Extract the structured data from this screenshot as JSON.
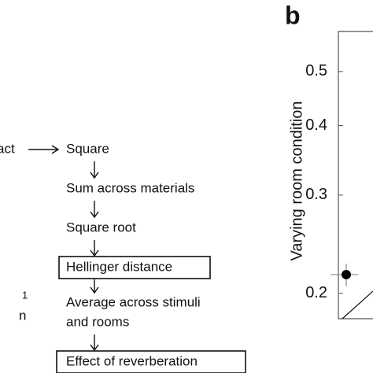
{
  "flowchart": {
    "input_fragment": "act",
    "steps": [
      "Square",
      "Sum across materials",
      "Square root"
    ],
    "box1": "Hellinger distance",
    "average": [
      "Average across stimuli",
      "and rooms"
    ],
    "box2": "Effect of reverberation",
    "side_fragments": [
      "1",
      "n"
    ]
  },
  "chart_data": {
    "type": "scatter",
    "panel_label": "b",
    "y_label": "Varying room condition",
    "ylim": [
      0.18,
      0.59
    ],
    "yticks": [
      0.2,
      0.3,
      0.4,
      0.5
    ],
    "log_y": true,
    "values": [
      0.216
    ],
    "errors": [
      0.01
    ],
    "color": "#000000"
  }
}
